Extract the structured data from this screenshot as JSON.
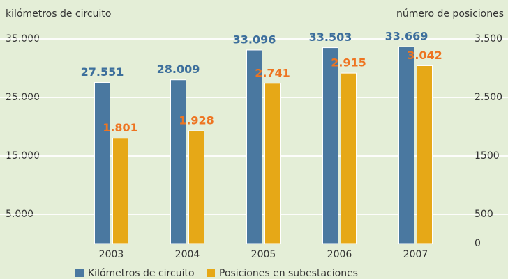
{
  "chart_data": {
    "type": "bar",
    "y_label": "kilómetros de circuito",
    "y2_label": "número de posiciones",
    "categories": [
      "2003",
      "2004",
      "2005",
      "2006",
      "2007"
    ],
    "series": [
      {
        "name": "Kilómetros de circuito",
        "color": "#4a78a0",
        "label_color": "#3d6f9c",
        "values": [
          27551,
          28009,
          33096,
          33503,
          33669
        ],
        "value_labels": [
          "27.551",
          "28.009",
          "33.096",
          "33.503",
          "33.669"
        ]
      },
      {
        "name": "Posiciones en subestaciones",
        "color": "#e6a817",
        "label_color": "#ee7420",
        "axis": "y2",
        "values": [
          1801,
          1928,
          2741,
          2915,
          3042
        ],
        "value_labels": [
          "1.801",
          "1.928",
          "2.741",
          "2.915",
          "3.042"
        ]
      }
    ],
    "ylim": [
      0,
      35000
    ],
    "yticks": [
      {
        "value": 5000,
        "label": "5.000"
      },
      {
        "value": 15000,
        "label": "15.000"
      },
      {
        "value": 25000,
        "label": "25.000"
      },
      {
        "value": 35000,
        "label": "35.000"
      }
    ],
    "y2lim": [
      0,
      3500
    ],
    "y2ticks": [
      0,
      500,
      1500,
      {
        "value": 2500,
        "label": "2.500"
      },
      {
        "value": 3500,
        "label": "3.500"
      }
    ],
    "grid": true
  }
}
